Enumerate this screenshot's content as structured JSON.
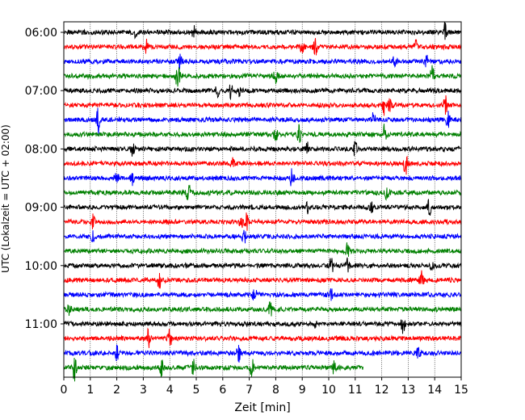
{
  "chart_data": {
    "type": "line",
    "title": "",
    "xlabel": "Zeit  [min]",
    "ylabel": "UTC (Lokalzeit = UTC + 02:00)",
    "xlim": [
      0,
      15
    ],
    "x_ticks": [
      "0",
      "1",
      "2",
      "3",
      "4",
      "5",
      "6",
      "7",
      "8",
      "9",
      "10",
      "11",
      "12",
      "13",
      "14",
      "15"
    ],
    "y_tick_labels": [
      "06:00",
      "07:00",
      "08:00",
      "09:00",
      "10:00",
      "11:00"
    ],
    "y_tick_trace_index": [
      0,
      4,
      8,
      12,
      16,
      20
    ],
    "grid": "vertical dotted",
    "trace_minutes": 15,
    "last_trace_end_min": 11.3,
    "colors_cycle": [
      "#000000",
      "#ff0000",
      "#0000ff",
      "#008000"
    ],
    "traces": [
      {
        "start": "06:00",
        "color": "#000000",
        "events": [
          [
            4.9,
            10
          ],
          [
            14.4,
            12
          ],
          [
            2.7,
            5
          ]
        ]
      },
      {
        "start": "06:15",
        "color": "#ff0000",
        "events": [
          [
            3.1,
            9
          ],
          [
            9.0,
            8
          ],
          [
            9.5,
            10
          ],
          [
            13.3,
            9
          ]
        ]
      },
      {
        "start": "06:30",
        "color": "#0000ff",
        "events": [
          [
            4.4,
            9
          ],
          [
            12.5,
            8
          ],
          [
            13.7,
            7
          ]
        ]
      },
      {
        "start": "06:45",
        "color": "#008000",
        "events": [
          [
            4.3,
            22
          ],
          [
            8.0,
            12
          ],
          [
            13.9,
            11
          ]
        ]
      },
      {
        "start": "07:00",
        "color": "#000000",
        "events": [
          [
            5.8,
            8
          ],
          [
            6.3,
            9
          ],
          [
            6.6,
            7
          ]
        ]
      },
      {
        "start": "07:15",
        "color": "#ff0000",
        "events": [
          [
            12.1,
            11
          ],
          [
            12.3,
            9
          ],
          [
            14.4,
            12
          ]
        ]
      },
      {
        "start": "07:30",
        "color": "#0000ff",
        "events": [
          [
            1.3,
            18
          ],
          [
            11.7,
            9
          ],
          [
            14.5,
            9
          ]
        ]
      },
      {
        "start": "07:45",
        "color": "#008000",
        "events": [
          [
            8.0,
            8
          ],
          [
            8.9,
            15
          ],
          [
            12.1,
            11
          ]
        ]
      },
      {
        "start": "08:00",
        "color": "#000000",
        "events": [
          [
            2.6,
            8
          ],
          [
            9.2,
            7
          ],
          [
            11.0,
            9
          ]
        ]
      },
      {
        "start": "08:15",
        "color": "#ff0000",
        "events": [
          [
            6.4,
            7
          ],
          [
            12.9,
            14
          ]
        ]
      },
      {
        "start": "08:30",
        "color": "#0000ff",
        "events": [
          [
            2.0,
            8
          ],
          [
            2.6,
            10
          ],
          [
            8.6,
            13
          ]
        ]
      },
      {
        "start": "08:45",
        "color": "#008000",
        "events": [
          [
            4.7,
            12
          ],
          [
            12.2,
            10
          ]
        ]
      },
      {
        "start": "09:00",
        "color": "#000000",
        "events": [
          [
            9.2,
            7
          ],
          [
            11.6,
            6
          ],
          [
            13.8,
            10
          ]
        ]
      },
      {
        "start": "09:15",
        "color": "#ff0000",
        "events": [
          [
            1.1,
            10
          ],
          [
            6.7,
            9
          ],
          [
            6.9,
            9
          ]
        ]
      },
      {
        "start": "09:30",
        "color": "#0000ff",
        "events": [
          [
            1.1,
            7
          ],
          [
            6.8,
            10
          ]
        ]
      },
      {
        "start": "09:45",
        "color": "#008000",
        "events": [
          [
            10.7,
            8
          ]
        ]
      },
      {
        "start": "10:00",
        "color": "#000000",
        "events": [
          [
            10.1,
            12
          ],
          [
            10.7,
            8
          ],
          [
            13.9,
            7
          ]
        ]
      },
      {
        "start": "10:15",
        "color": "#ff0000",
        "events": [
          [
            3.6,
            10
          ],
          [
            13.5,
            11
          ]
        ]
      },
      {
        "start": "10:30",
        "color": "#0000ff",
        "events": [
          [
            7.2,
            8
          ],
          [
            10.1,
            6
          ]
        ]
      },
      {
        "start": "10:45",
        "color": "#008000",
        "events": [
          [
            7.8,
            13
          ],
          [
            0.2,
            6
          ]
        ]
      },
      {
        "start": "11:00",
        "color": "#000000",
        "events": [
          [
            9.5,
            5
          ],
          [
            12.8,
            10
          ]
        ]
      },
      {
        "start": "11:15",
        "color": "#ff0000",
        "events": [
          [
            3.2,
            12
          ],
          [
            4.0,
            12
          ]
        ]
      },
      {
        "start": "11:30",
        "color": "#0000ff",
        "events": [
          [
            2.0,
            8
          ],
          [
            6.6,
            11
          ],
          [
            13.4,
            9
          ]
        ]
      },
      {
        "start": "11:45",
        "color": "#008000",
        "events": [
          [
            0.4,
            15
          ],
          [
            3.7,
            11
          ],
          [
            4.9,
            12
          ],
          [
            7.1,
            11
          ],
          [
            10.2,
            10
          ]
        ]
      }
    ]
  }
}
